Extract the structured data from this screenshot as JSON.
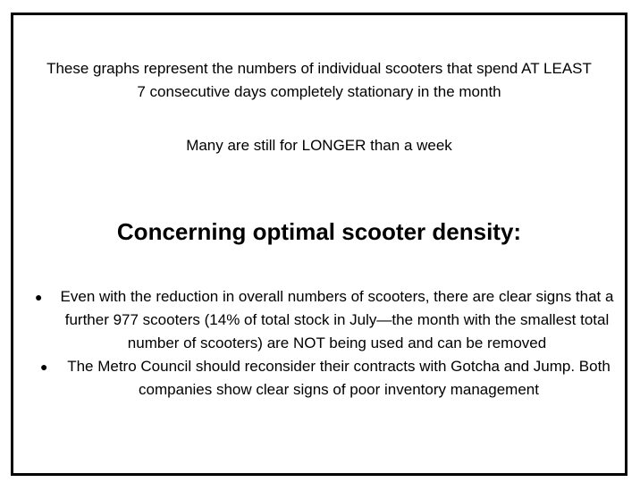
{
  "intro": {
    "line1": "These graphs represent the numbers of individual scooters that spend AT LEAST",
    "line2": "7 consecutive days completely stationary in the month"
  },
  "note": "Many are still for LONGER than a week",
  "heading": "Concerning optimal scooter density:",
  "bullets": [
    {
      "marker": "●",
      "text": "Even with the reduction in overall numbers of scooters, there are clear signs that a further 977 scooters (14% of total stock in July—the month with the smallest total number of scooters) are NOT being used and can be removed"
    },
    {
      "marker": "●",
      "text": "The Metro Council should reconsider their contracts with Gotcha and Jump.  Both companies show clear signs of poor inventory management"
    }
  ]
}
